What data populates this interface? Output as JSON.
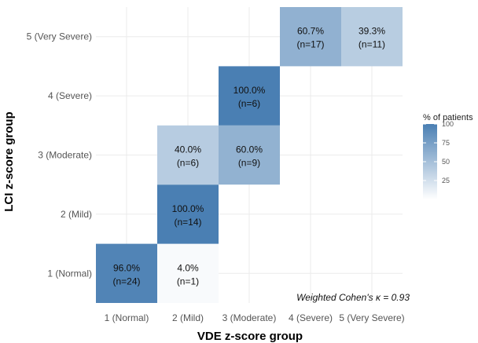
{
  "chart_data": {
    "type": "heatmap",
    "title": "",
    "xlabel": "VDE z-score group",
    "ylabel": "LCI z-score group",
    "x_categories": [
      "1 (Normal)",
      "2 (Mild)",
      "3 (Moderate)",
      "4 (Severe)",
      "5 (Very Severe)"
    ],
    "y_categories": [
      "1 (Normal)",
      "2 (Mild)",
      "3 (Moderate)",
      "4 (Severe)",
      "5 (Very Severe)"
    ],
    "cells": [
      {
        "x": "1 (Normal)",
        "y": "1 (Normal)",
        "value": 96.0,
        "label": "96.0%",
        "n_label": "(n=24)"
      },
      {
        "x": "2 (Mild)",
        "y": "1 (Normal)",
        "value": 4.0,
        "label": "4.0%",
        "n_label": "(n=1)"
      },
      {
        "x": "2 (Mild)",
        "y": "2 (Mild)",
        "value": 100.0,
        "label": "100.0%",
        "n_label": "(n=14)"
      },
      {
        "x": "2 (Mild)",
        "y": "3 (Moderate)",
        "value": 40.0,
        "label": "40.0%",
        "n_label": "(n=6)"
      },
      {
        "x": "3 (Moderate)",
        "y": "3 (Moderate)",
        "value": 60.0,
        "label": "60.0%",
        "n_label": "(n=9)"
      },
      {
        "x": "3 (Moderate)",
        "y": "4 (Severe)",
        "value": 100.0,
        "label": "100.0%",
        "n_label": "(n=6)"
      },
      {
        "x": "4 (Severe)",
        "y": "5 (Very Severe)",
        "value": 60.7,
        "label": "60.7%",
        "n_label": "(n=17)"
      },
      {
        "x": "5 (Very Severe)",
        "y": "5 (Very Severe)",
        "value": 39.3,
        "label": "39.3%",
        "n_label": "(n=11)"
      }
    ],
    "legend": {
      "title": "% of patients",
      "ticks": [
        25,
        50,
        75,
        100
      ],
      "range": [
        0,
        100
      ],
      "position": "right",
      "color_low": "#ffffff",
      "color_high": "#4a7fb3"
    },
    "annotation": "Weighted Cohen's κ = 0.93",
    "grid": true
  }
}
